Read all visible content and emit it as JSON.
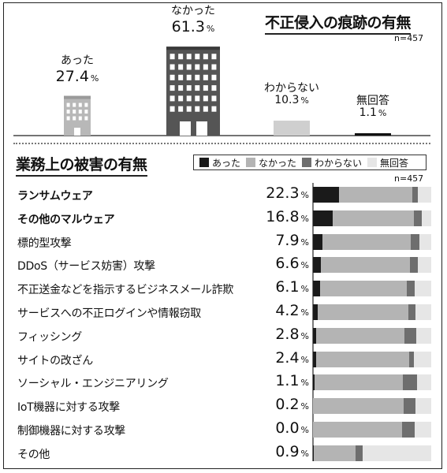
{
  "colors": {
    "yes": "#1a1a1a",
    "no": "#b4b4b4",
    "unknown": "#6e6e6e",
    "noanswer": "#e6e6e6",
    "building_light": "#b8b8b8",
    "building_dark": "#555555",
    "window": "#ffffff"
  },
  "chart_data": [
    {
      "type": "bar",
      "title": "不正侵入の痕跡の有無",
      "note": "n=457",
      "categories": [
        "あった",
        "なかった",
        "わからない",
        "無回答"
      ],
      "values": [
        27.4,
        61.3,
        10.3,
        1.1
      ],
      "value_labels": [
        "27.4",
        "61.3",
        "10.3",
        "1.1"
      ],
      "unit": "%"
    },
    {
      "type": "bar",
      "stacked": true,
      "orientation": "horizontal",
      "title": "業務上の被害の有無",
      "note": "n=457",
      "legend_position": "top-right",
      "unit": "%",
      "categories": [
        "ランサムウェア",
        "その他のマルウェア",
        "標的型攻撃",
        "DDoS（サービス妨害）攻撃",
        "不正送金などを指示するビジネスメール詐欺",
        "サービスへの不正ログインや情報窃取",
        "フィッシング",
        "サイトの改ざん",
        "ソーシャル・エンジニアリング",
        "IoT機器に対する攻撃",
        "制御機器に対する攻撃",
        "その他"
      ],
      "bold": [
        true,
        true,
        false,
        false,
        false,
        false,
        false,
        false,
        false,
        false,
        false,
        false
      ],
      "value_labels": [
        "22.3",
        "16.8",
        "7.9",
        "6.6",
        "6.1",
        "4.2",
        "2.8",
        "2.4",
        "1.1",
        "0.2",
        "0.0",
        "0.9"
      ],
      "series": [
        {
          "name": "あった",
          "color_key": "yes",
          "values": [
            22.3,
            16.8,
            7.9,
            6.6,
            6.1,
            4.2,
            2.8,
            2.4,
            1.1,
            0.2,
            0.0,
            0.9
          ]
        },
        {
          "name": "なかった",
          "color_key": "no",
          "values": [
            62.0,
            68.5,
            75.0,
            75.7,
            73.0,
            76.5,
            74.5,
            79.0,
            74.8,
            76.3,
            75.5,
            35.1
          ]
        },
        {
          "name": "わからない",
          "color_key": "unknown",
          "values": [
            4.5,
            6.5,
            6.9,
            6.6,
            7.0,
            6.2,
            10.0,
            4.2,
            12.1,
            10.0,
            10.5,
            6.0
          ]
        },
        {
          "name": "無回答",
          "color_key": "noanswer",
          "values": [
            11.2,
            8.2,
            10.2,
            11.1,
            13.9,
            13.1,
            12.7,
            14.4,
            12.0,
            13.5,
            14.0,
            58.0
          ]
        }
      ]
    }
  ]
}
